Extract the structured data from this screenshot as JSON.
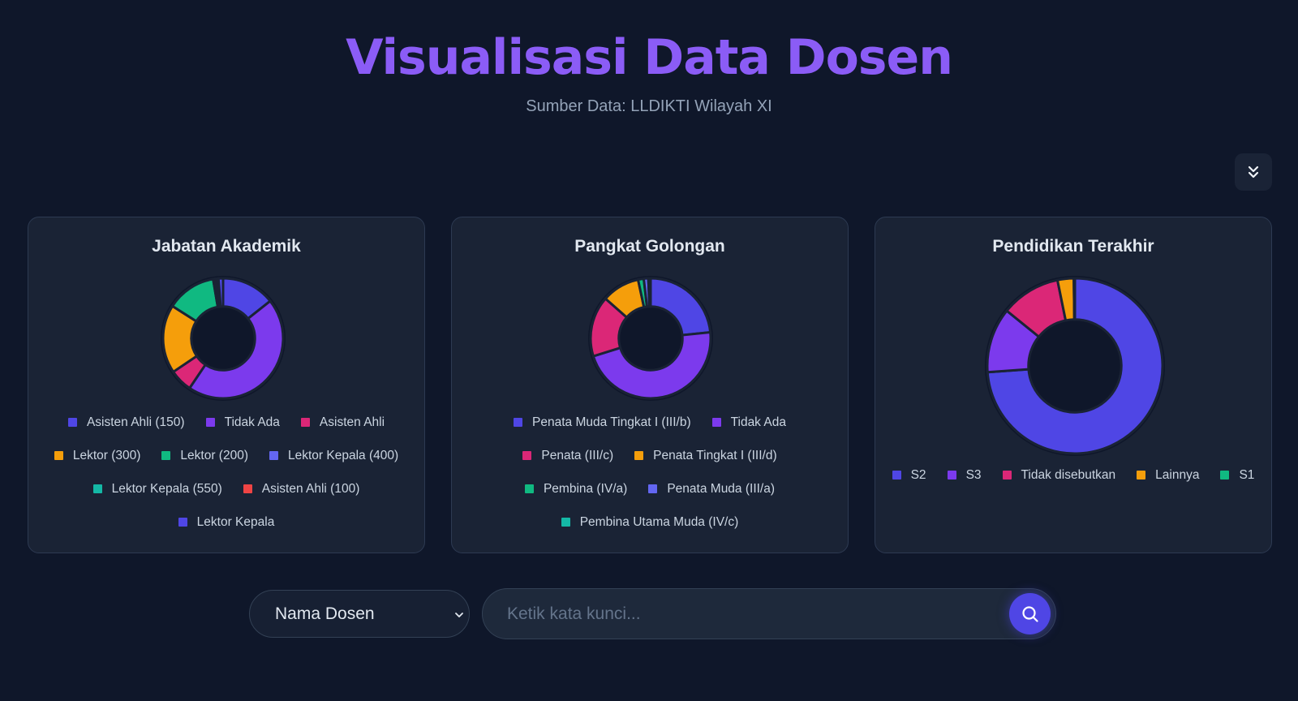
{
  "header": {
    "title": "Visualisasi Data Dosen",
    "subtitle": "Sumber Data: LLDIKTI Wilayah XI"
  },
  "controls": {
    "collapse_icon": "chevrons-down-icon"
  },
  "charts": [
    {
      "title": "Jabatan Akademik",
      "slices": [
        {
          "label": "Asisten Ahli (150)",
          "value": 14,
          "color": "#4f46e5"
        },
        {
          "label": "Tidak Ada",
          "value": 44,
          "color": "#7c3aed"
        },
        {
          "label": "Asisten Ahli",
          "value": 6,
          "color": "#db2777"
        },
        {
          "label": "Lektor (300)",
          "value": 18,
          "color": "#f59e0b"
        },
        {
          "label": "Lektor (200)",
          "value": 13,
          "color": "#10b981"
        },
        {
          "label": "Lektor Kepala (400)",
          "value": 0.6,
          "color": "#6366f1"
        },
        {
          "label": "Lektor Kepala (550)",
          "value": 0.5,
          "color": "#14b8a6"
        },
        {
          "label": "Asisten Ahli (100)",
          "value": 0.3,
          "color": "#ef4444"
        },
        {
          "label": "Lektor Kepala",
          "value": 1.2,
          "color": "#4f46e5"
        }
      ]
    },
    {
      "title": "Pangkat Golongan",
      "slices": [
        {
          "label": "Penata Muda Tingkat I (III/b)",
          "value": 23,
          "color": "#4f46e5"
        },
        {
          "label": "Tidak Ada",
          "value": 46,
          "color": "#7c3aed"
        },
        {
          "label": "Penata (III/c)",
          "value": 16,
          "color": "#db2777"
        },
        {
          "label": "Penata Tingkat I (III/d)",
          "value": 10,
          "color": "#f59e0b"
        },
        {
          "label": "Pembina (IV/a)",
          "value": 1.5,
          "color": "#10b981"
        },
        {
          "label": "Penata Muda (III/a)",
          "value": 1.2,
          "color": "#6366f1"
        },
        {
          "label": "Pembina Utama Muda (IV/c)",
          "value": 0.6,
          "color": "#14b8a6"
        }
      ]
    },
    {
      "title": "Pendidikan Terakhir",
      "slices": [
        {
          "label": "S2",
          "value": 74,
          "color": "#4f46e5"
        },
        {
          "label": "S3",
          "value": 12,
          "color": "#7c3aed"
        },
        {
          "label": "Tidak disebutkan",
          "value": 11,
          "color": "#db2777"
        },
        {
          "label": "Lainnya",
          "value": 3,
          "color": "#f59e0b"
        },
        {
          "label": "S1",
          "value": 0.2,
          "color": "#10b981"
        }
      ]
    }
  ],
  "search": {
    "select_value": "Nama Dosen",
    "placeholder": "Ketik kata kunci...",
    "search_icon": "search-icon"
  }
}
